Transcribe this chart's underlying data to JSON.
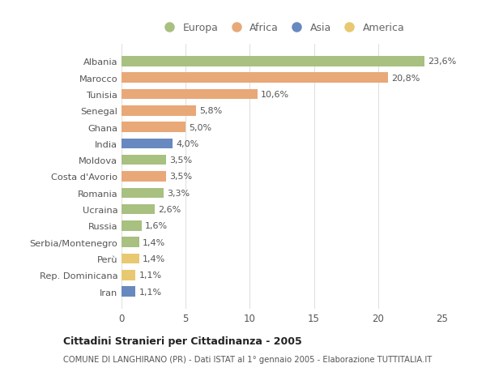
{
  "countries": [
    "Albania",
    "Marocco",
    "Tunisia",
    "Senegal",
    "Ghana",
    "India",
    "Moldova",
    "Costa d'Avorio",
    "Romania",
    "Ucraina",
    "Russia",
    "Serbia/Montenegro",
    "Perù",
    "Rep. Dominicana",
    "Iran"
  ],
  "values": [
    23.6,
    20.8,
    10.6,
    5.8,
    5.0,
    4.0,
    3.5,
    3.5,
    3.3,
    2.6,
    1.6,
    1.4,
    1.4,
    1.1,
    1.1
  ],
  "labels": [
    "23,6%",
    "20,8%",
    "10,6%",
    "5,8%",
    "5,0%",
    "4,0%",
    "3,5%",
    "3,5%",
    "3,3%",
    "2,6%",
    "1,6%",
    "1,4%",
    "1,4%",
    "1,1%",
    "1,1%"
  ],
  "continents": [
    "Europa",
    "Africa",
    "Africa",
    "Africa",
    "Africa",
    "Asia",
    "Europa",
    "Africa",
    "Europa",
    "Europa",
    "Europa",
    "Europa",
    "America",
    "America",
    "Asia"
  ],
  "colors": {
    "Europa": "#a8c080",
    "Africa": "#e8a878",
    "Asia": "#6888c0",
    "America": "#e8c870"
  },
  "title": "Cittadini Stranieri per Cittadinanza - 2005",
  "subtitle": "COMUNE DI LANGHIRANO (PR) - Dati ISTAT al 1° gennaio 2005 - Elaborazione TUTTITALIA.IT",
  "xlim": [
    0,
    25
  ],
  "xticks": [
    0,
    5,
    10,
    15,
    20,
    25
  ],
  "bg_color": "#ffffff",
  "grid_color": "#e0e0e0",
  "legend_order": [
    "Europa",
    "Africa",
    "Asia",
    "America"
  ]
}
